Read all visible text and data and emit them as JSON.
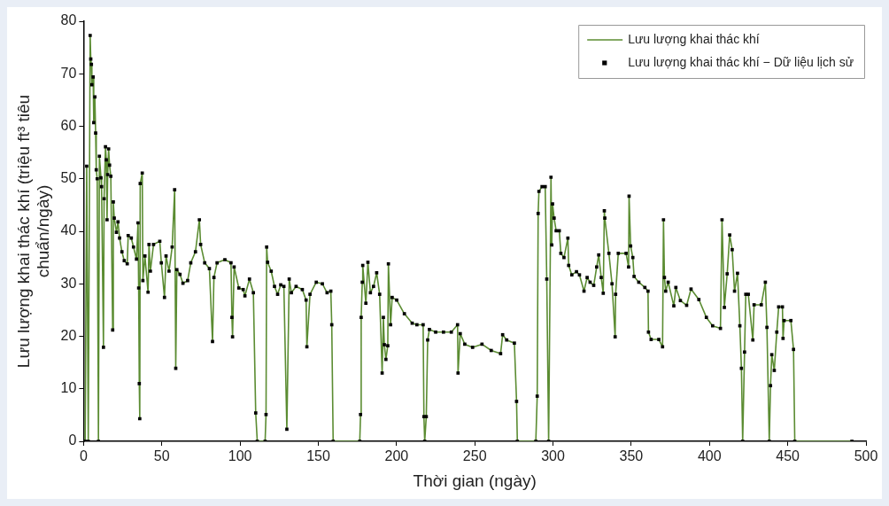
{
  "chart_data": {
    "type": "line",
    "xlabel": "Thời gian (ngày)",
    "ylabel": "Lưu lượng khai thác khí (triệu ft³ tiêu chuẩn/ngày)",
    "x": [
      0,
      1,
      2,
      3,
      4.2,
      4.6,
      5,
      5.3,
      6.1,
      6.5,
      7.2,
      7.7,
      8.1,
      8.7,
      9.5,
      10.1,
      11.1,
      11.5,
      12.7,
      13.1,
      14,
      14.5,
      15,
      15.4,
      16,
      16.6,
      17.4,
      18.6,
      19,
      19.6,
      21,
      22,
      23,
      24.5,
      26,
      27.9,
      28.5,
      30.5,
      31.9,
      33.8,
      34.8,
      35.2,
      35.6,
      35.9,
      36.2,
      37.5,
      37.9,
      39.2,
      41.2,
      41.8,
      42.7,
      44.7,
      48.7,
      49.7,
      51.7,
      52.7,
      54.6,
      56.6,
      58.2,
      58.9,
      59.6,
      61.6,
      63.5,
      66.5,
      68.5,
      71.5,
      74,
      74.8,
      77.4,
      80.4,
      82.4,
      83.3,
      85.3,
      90.3,
      94.2,
      94.8,
      95.2,
      96.2,
      99.2,
      102,
      103.1,
      106,
      108.5,
      110,
      111,
      116,
      116.6,
      117,
      117.6,
      119.9,
      122,
      124,
      126,
      128,
      129.9,
      131.4,
      132.8,
      135.8,
      139.8,
      142.2,
      142.7,
      144.7,
      148.7,
      152.6,
      155.6,
      158,
      158.6,
      159.5,
      176.5,
      177,
      177.4,
      178.1,
      178.4,
      180.4,
      181.7,
      183.3,
      185.3,
      187.3,
      189.2,
      190.8,
      191.6,
      192.2,
      193.2,
      194.4,
      194.8,
      196.2,
      197.2,
      200.1,
      205,
      210,
      213,
      217,
      217.5,
      218,
      219,
      219.9,
      221,
      225,
      230,
      235,
      239,
      239.3,
      240.7,
      243.6,
      248.6,
      254.6,
      260.5,
      266.5,
      267.8,
      270.4,
      275.3,
      276.7,
      277.2,
      289,
      289.9,
      290.5,
      291,
      293,
      295,
      296,
      297.2,
      298.7,
      299.2,
      299.7,
      300.7,
      302,
      304,
      305,
      307,
      309.5,
      310,
      312,
      315,
      316.9,
      319.8,
      321.8,
      323.7,
      326,
      327.9,
      329.2,
      330.8,
      332.1,
      332.8,
      333.1,
      335.7,
      337.7,
      339.7,
      340,
      341.7,
      346.7,
      348.3,
      348.6,
      349.6,
      351,
      351.8,
      354.8,
      358.7,
      360.7,
      361,
      362.7,
      367.6,
      370,
      370.6,
      371.2,
      372,
      373.6,
      377.2,
      378.5,
      381.4,
      385.4,
      388.2,
      393.2,
      398,
      402,
      407,
      408,
      409.5,
      411.3,
      412.9,
      414.5,
      416,
      417.9,
      419.4,
      420.4,
      421.2,
      422.4,
      423.2,
      424.8,
      427.7,
      428.5,
      433.1,
      435.7,
      436.7,
      438.2,
      439,
      439.8,
      441.4,
      443,
      444.2,
      446.6,
      447,
      447.7,
      452,
      453.7,
      454.5,
      491
    ],
    "series": [
      {
        "name": "Lưu lượng khai thác khí",
        "type": "line",
        "color": "#5b8c32",
        "marker": "none",
        "line_style": "solid",
        "values": [
          0,
          0,
          52.4,
          0,
          77.3,
          72.8,
          71.8,
          67.9,
          69.4,
          60.7,
          65.6,
          58.7,
          51.7,
          50,
          0,
          54.3,
          50.2,
          48.5,
          17.9,
          46.2,
          56.1,
          53.6,
          42.2,
          50.8,
          55.7,
          52.6,
          50.5,
          21.2,
          45.6,
          42.5,
          39.8,
          41.8,
          38.7,
          36.1,
          34.4,
          33.8,
          39.2,
          38.7,
          37,
          34.7,
          41.6,
          29.2,
          11,
          4.3,
          49.1,
          51.1,
          30.6,
          35.3,
          28.4,
          37.5,
          32.4,
          37.5,
          38.1,
          34,
          27.4,
          35.3,
          32.4,
          37,
          47.9,
          13.9,
          32.7,
          31.8,
          30.1,
          30.6,
          34,
          36.1,
          42.2,
          37.5,
          34,
          32.9,
          19,
          31.2,
          34,
          34.6,
          34,
          23.6,
          19.9,
          33.2,
          29.2,
          28.9,
          27.7,
          30.9,
          28.3,
          5.4,
          0,
          0,
          5.1,
          37,
          34.1,
          32.4,
          29.5,
          28,
          29.8,
          29.5,
          2.3,
          30.9,
          28.3,
          29.5,
          28.9,
          26.9,
          18,
          28,
          30.3,
          30,
          28.3,
          28.6,
          22.2,
          0,
          0,
          5.1,
          23.6,
          30.3,
          33.5,
          26.3,
          34.1,
          28.3,
          29.5,
          32.1,
          28,
          13,
          23.6,
          18.4,
          15.6,
          18.2,
          33.8,
          22.2,
          27.4,
          26.9,
          24.3,
          22.5,
          22.2,
          22.2,
          4.7,
          0,
          4.7,
          19.3,
          21.3,
          20.8,
          20.8,
          20.8,
          22.2,
          13,
          20.5,
          18.5,
          17.9,
          18.5,
          17.3,
          16.7,
          20.3,
          19.3,
          18.7,
          7.6,
          0,
          0,
          8.6,
          43.4,
          47.6,
          48.5,
          48.5,
          30.9,
          0,
          50.3,
          37.4,
          45.2,
          42.5,
          40.1,
          40.1,
          35.8,
          35,
          38.7,
          33.5,
          31.7,
          32.3,
          31.7,
          28.6,
          31.2,
          30.3,
          29.7,
          33.2,
          35.5,
          31.2,
          28.2,
          43.9,
          42.5,
          35.8,
          30,
          19.9,
          28,
          35.8,
          35.8,
          33.2,
          46.7,
          37.2,
          35,
          31.4,
          30.3,
          29.3,
          28.6,
          20.8,
          19.4,
          19.4,
          18,
          42.2,
          31.2,
          28.6,
          30.3,
          25.8,
          29.3,
          26.8,
          25.9,
          29,
          27,
          23.6,
          22,
          21.5,
          42.2,
          25.5,
          31.9,
          39.3,
          36.5,
          28.6,
          32,
          22,
          13.9,
          0,
          17,
          28,
          28,
          19.3,
          26,
          26,
          30.3,
          21.7,
          0,
          10.6,
          16.5,
          13.5,
          20.8,
          25.6,
          25.6,
          19.6,
          23,
          23,
          17.5,
          0,
          0
        ]
      },
      {
        "name": "Lưu lượng khai thác khí − Dữ liệu lịch sử",
        "type": "scatter",
        "color": "#000000",
        "marker": "square",
        "values": [
          0,
          0,
          52.4,
          0,
          77.3,
          72.8,
          71.8,
          67.9,
          69.4,
          60.7,
          65.6,
          58.7,
          51.7,
          50,
          0,
          54.3,
          50.2,
          48.5,
          17.9,
          46.2,
          56.1,
          53.6,
          42.2,
          50.8,
          55.7,
          52.6,
          50.5,
          21.2,
          45.6,
          42.5,
          39.8,
          41.8,
          38.7,
          36.1,
          34.4,
          33.8,
          39.2,
          38.7,
          37,
          34.7,
          41.6,
          29.2,
          11,
          4.3,
          49.1,
          51.1,
          30.6,
          35.3,
          28.4,
          37.5,
          32.4,
          37.5,
          38.1,
          34,
          27.4,
          35.3,
          32.4,
          37,
          47.9,
          13.9,
          32.7,
          31.8,
          30.1,
          30.6,
          34,
          36.1,
          42.2,
          37.5,
          34,
          32.9,
          19,
          31.2,
          34,
          34.6,
          34,
          23.6,
          19.9,
          33.2,
          29.2,
          28.9,
          27.7,
          30.9,
          28.3,
          5.4,
          0,
          0,
          5.1,
          37,
          34.1,
          32.4,
          29.5,
          28,
          29.8,
          29.5,
          2.3,
          30.9,
          28.3,
          29.5,
          28.9,
          26.9,
          18,
          28,
          30.3,
          30,
          28.3,
          28.6,
          22.2,
          0,
          0,
          5.1,
          23.6,
          30.3,
          33.5,
          26.3,
          34.1,
          28.3,
          29.5,
          32.1,
          28,
          13,
          23.6,
          18.4,
          15.6,
          18.2,
          33.8,
          22.2,
          27.4,
          26.9,
          24.3,
          22.5,
          22.2,
          22.2,
          4.7,
          0,
          4.7,
          19.3,
          21.3,
          20.8,
          20.8,
          20.8,
          22.2,
          13,
          20.5,
          18.5,
          17.9,
          18.5,
          17.3,
          16.7,
          20.3,
          19.3,
          18.7,
          7.6,
          0,
          0,
          8.6,
          43.4,
          47.6,
          48.5,
          48.5,
          30.9,
          0,
          50.3,
          37.4,
          45.2,
          42.5,
          40.1,
          40.1,
          35.8,
          35,
          38.7,
          33.5,
          31.7,
          32.3,
          31.7,
          28.6,
          31.2,
          30.3,
          29.7,
          33.2,
          35.5,
          31.2,
          28.2,
          43.9,
          42.5,
          35.8,
          30,
          19.9,
          28,
          35.8,
          35.8,
          33.2,
          46.7,
          37.2,
          35,
          31.4,
          30.3,
          29.3,
          28.6,
          20.8,
          19.4,
          19.4,
          18,
          42.2,
          31.2,
          28.6,
          30.3,
          25.8,
          29.3,
          26.8,
          25.9,
          29,
          27,
          23.6,
          22,
          21.5,
          42.2,
          25.5,
          31.9,
          39.3,
          36.5,
          28.6,
          32,
          22,
          13.9,
          0,
          17,
          28,
          28,
          19.3,
          26,
          26,
          30.3,
          21.7,
          0,
          10.6,
          16.5,
          13.5,
          20.8,
          25.6,
          25.6,
          19.6,
          23,
          23,
          17.5,
          0,
          0
        ]
      }
    ],
    "xlim": [
      0,
      500
    ],
    "xticks": [
      0,
      50,
      100,
      150,
      200,
      250,
      300,
      350,
      400,
      450,
      500
    ],
    "ylim": [
      0,
      80
    ],
    "yticks": [
      0,
      10,
      20,
      30,
      40,
      50,
      60,
      70,
      80
    ],
    "grid": false,
    "legend": "top right"
  }
}
